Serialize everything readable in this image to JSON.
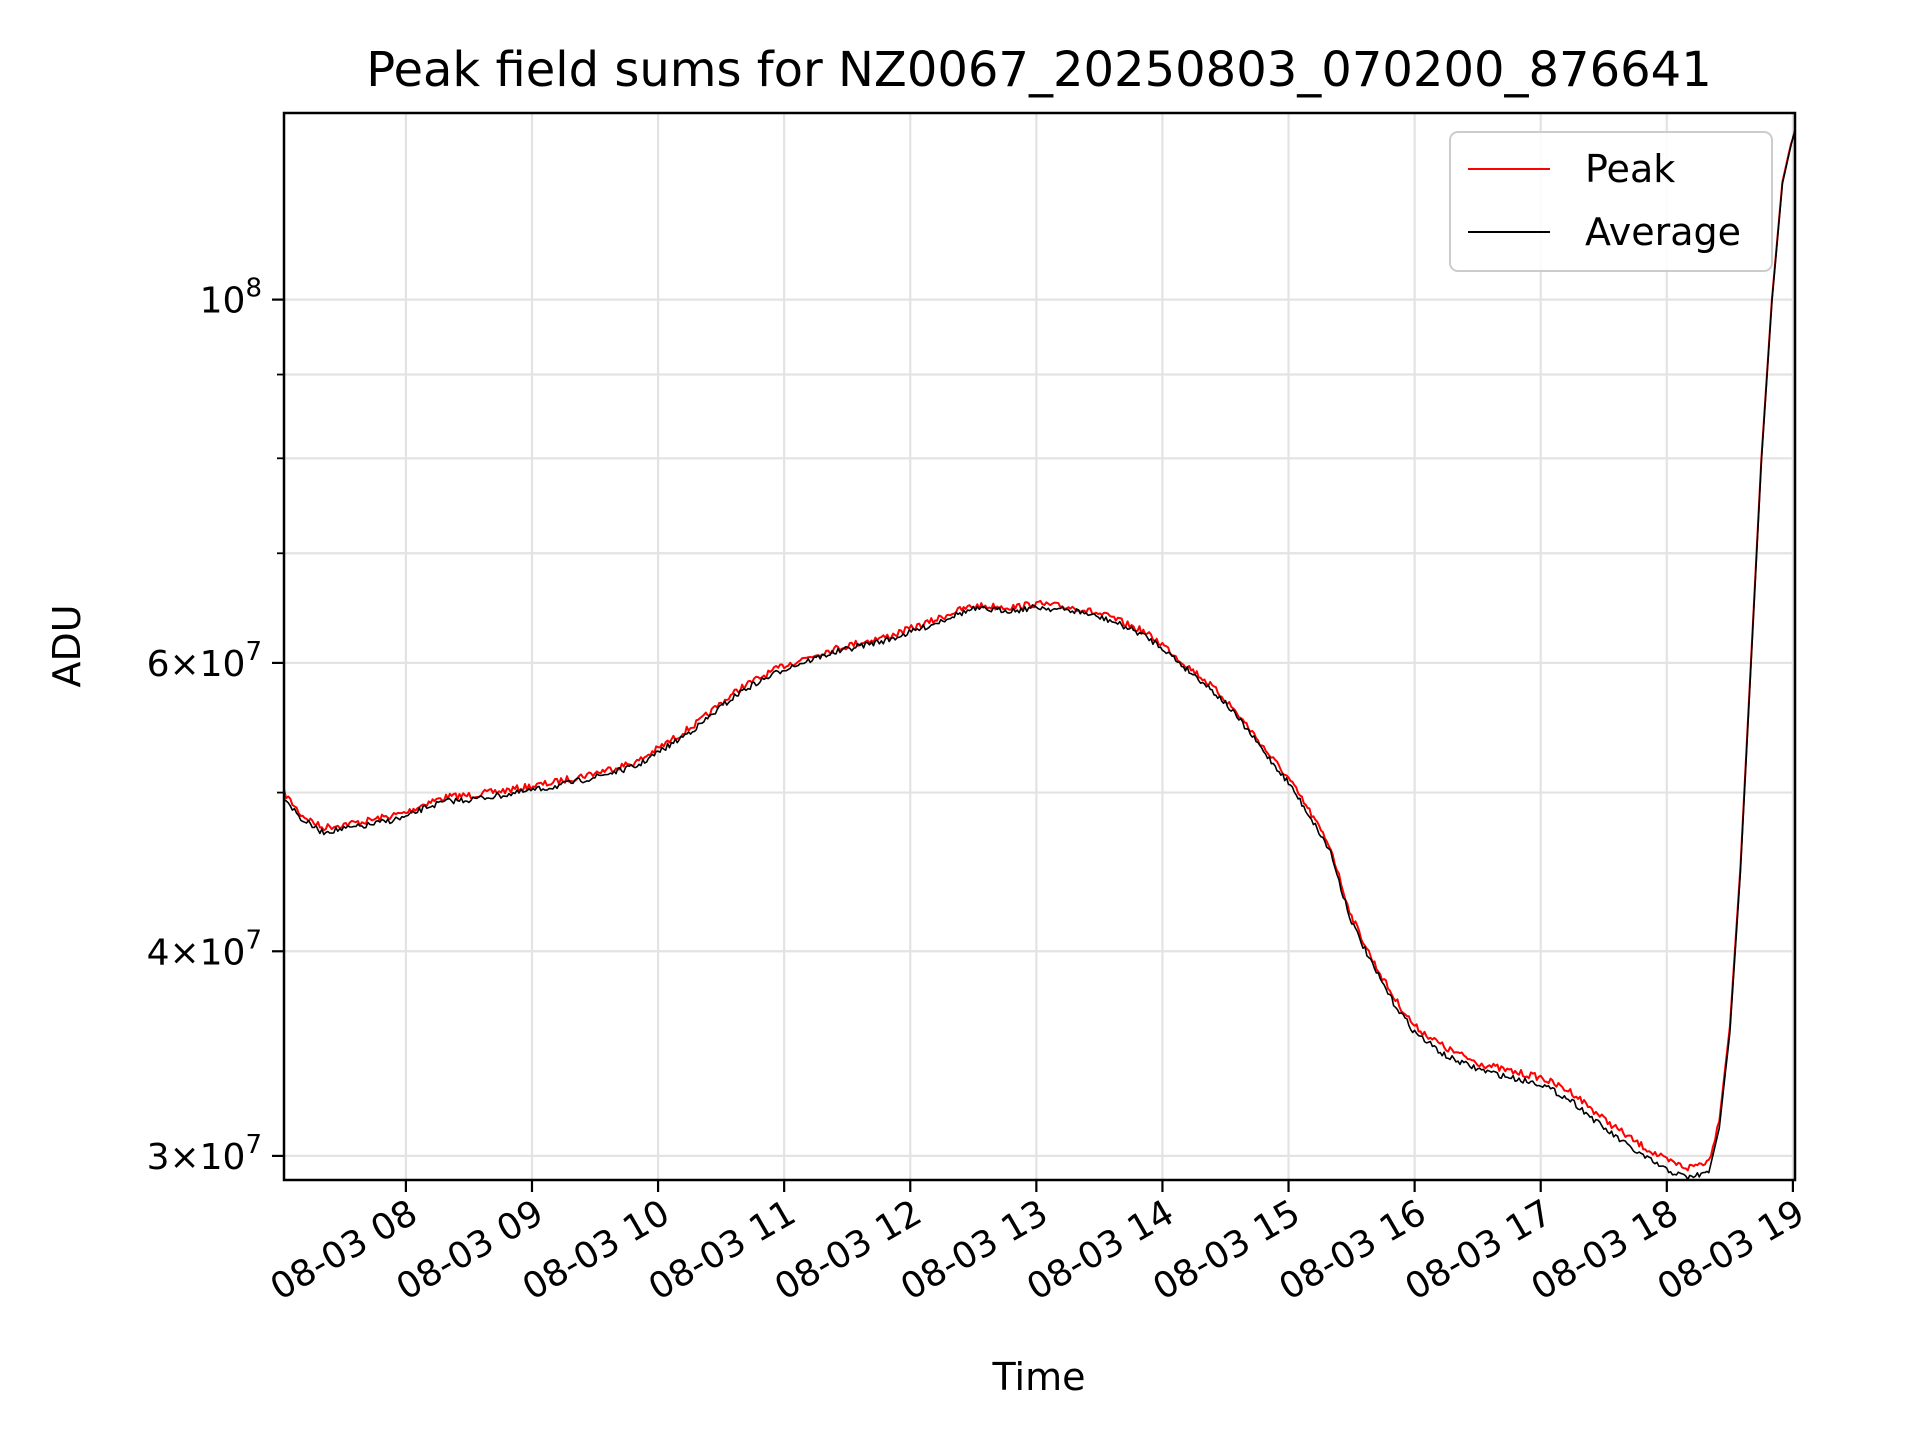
{
  "chart_data": {
    "type": "line",
    "title": "Peak field sums for NZ0067_20250803_070200_876641",
    "xlabel": "Time",
    "ylabel": "ADU",
    "yscale": "log",
    "ylim": [
      29000000,
      130000000
    ],
    "xlim": [
      "2025-08-03 07:02",
      "2025-08-03 19:01"
    ],
    "x_ticks": [
      {
        "t": "2025-08-03 08:00",
        "label": "08-03 08"
      },
      {
        "t": "2025-08-03 09:00",
        "label": "08-03 09"
      },
      {
        "t": "2025-08-03 10:00",
        "label": "08-03 10"
      },
      {
        "t": "2025-08-03 11:00",
        "label": "08-03 11"
      },
      {
        "t": "2025-08-03 12:00",
        "label": "08-03 12"
      },
      {
        "t": "2025-08-03 13:00",
        "label": "08-03 13"
      },
      {
        "t": "2025-08-03 14:00",
        "label": "08-03 14"
      },
      {
        "t": "2025-08-03 15:00",
        "label": "08-03 15"
      },
      {
        "t": "2025-08-03 16:00",
        "label": "08-03 16"
      },
      {
        "t": "2025-08-03 17:00",
        "label": "08-03 17"
      },
      {
        "t": "2025-08-03 18:00",
        "label": "08-03 18"
      },
      {
        "t": "2025-08-03 19:00",
        "label": "08-03 19"
      }
    ],
    "y_major_ticks": [
      {
        "value": 30000000,
        "base": "3",
        "exp": "7"
      },
      {
        "value": 40000000,
        "base": "4",
        "exp": "7"
      },
      {
        "value": 60000000,
        "base": "6",
        "exp": "7"
      },
      {
        "value": 100000000,
        "base": "",
        "exp": "8"
      }
    ],
    "y_minor_ticks": [
      50000000,
      70000000,
      80000000,
      90000000
    ],
    "grid": true,
    "legend": {
      "position": "top-right"
    },
    "series": [
      {
        "name": "Peak",
        "color": "#ff0000",
        "x": [
          "2025-08-03 07:02",
          "2025-08-03 07:10",
          "2025-08-03 07:20",
          "2025-08-03 07:40",
          "2025-08-03 08:00",
          "2025-08-03 08:10",
          "2025-08-03 08:20",
          "2025-08-03 08:30",
          "2025-08-03 08:50",
          "2025-08-03 09:10",
          "2025-08-03 09:30",
          "2025-08-03 09:40",
          "2025-08-03 09:50",
          "2025-08-03 10:00",
          "2025-08-03 10:10",
          "2025-08-03 10:20",
          "2025-08-03 10:30",
          "2025-08-03 10:40",
          "2025-08-03 11:00",
          "2025-08-03 11:20",
          "2025-08-03 11:35",
          "2025-08-03 11:50",
          "2025-08-03 12:10",
          "2025-08-03 12:20",
          "2025-08-03 12:30",
          "2025-08-03 12:50",
          "2025-08-03 13:00",
          "2025-08-03 13:20",
          "2025-08-03 13:35",
          "2025-08-03 13:50",
          "2025-08-03 14:00",
          "2025-08-03 14:10",
          "2025-08-03 14:20",
          "2025-08-03 14:30",
          "2025-08-03 14:40",
          "2025-08-03 14:50",
          "2025-08-03 15:00",
          "2025-08-03 15:10",
          "2025-08-03 15:20",
          "2025-08-03 15:25",
          "2025-08-03 15:30",
          "2025-08-03 15:40",
          "2025-08-03 15:50",
          "2025-08-03 16:00",
          "2025-08-03 16:15",
          "2025-08-03 16:30",
          "2025-08-03 16:45",
          "2025-08-03 17:00",
          "2025-08-03 17:15",
          "2025-08-03 17:30",
          "2025-08-03 17:45",
          "2025-08-03 18:00",
          "2025-08-03 18:10",
          "2025-08-03 18:20",
          "2025-08-03 18:25",
          "2025-08-03 18:30",
          "2025-08-03 18:35",
          "2025-08-03 18:40",
          "2025-08-03 18:45",
          "2025-08-03 18:50",
          "2025-08-03 18:55",
          "2025-08-03 19:00",
          "2025-08-03 19:01"
        ],
        "y": [
          50000000,
          48500000,
          47600000,
          48000000,
          48600000,
          49300000,
          49700000,
          49800000,
          50200000,
          50700000,
          51400000,
          51800000,
          52200000,
          53200000,
          54200000,
          55300000,
          56700000,
          58000000,
          59800000,
          61000000,
          61700000,
          62300000,
          63600000,
          64400000,
          65000000,
          64900000,
          65200000,
          64800000,
          64000000,
          62800000,
          61600000,
          60000000,
          58600000,
          57000000,
          55000000,
          52900000,
          51000000,
          48700000,
          46300000,
          44000000,
          42000000,
          39500000,
          37500000,
          36000000,
          34900000,
          34200000,
          33800000,
          33500000,
          32800000,
          31600000,
          30600000,
          29800000,
          29500000,
          29800000,
          31500000,
          36000000,
          45000000,
          60000000,
          80000000,
          100000000,
          118000000,
          126000000,
          127000000
        ]
      },
      {
        "name": "Average",
        "color": "#000000",
        "x": [
          "2025-08-03 07:02",
          "2025-08-03 07:10",
          "2025-08-03 07:20",
          "2025-08-03 07:40",
          "2025-08-03 08:00",
          "2025-08-03 08:10",
          "2025-08-03 08:20",
          "2025-08-03 08:30",
          "2025-08-03 08:50",
          "2025-08-03 09:10",
          "2025-08-03 09:30",
          "2025-08-03 09:40",
          "2025-08-03 09:50",
          "2025-08-03 10:00",
          "2025-08-03 10:10",
          "2025-08-03 10:20",
          "2025-08-03 10:30",
          "2025-08-03 10:40",
          "2025-08-03 11:00",
          "2025-08-03 11:20",
          "2025-08-03 11:35",
          "2025-08-03 11:50",
          "2025-08-03 12:10",
          "2025-08-03 12:20",
          "2025-08-03 12:30",
          "2025-08-03 12:50",
          "2025-08-03 13:00",
          "2025-08-03 13:20",
          "2025-08-03 13:35",
          "2025-08-03 13:50",
          "2025-08-03 14:00",
          "2025-08-03 14:10",
          "2025-08-03 14:20",
          "2025-08-03 14:30",
          "2025-08-03 14:40",
          "2025-08-03 14:50",
          "2025-08-03 15:00",
          "2025-08-03 15:10",
          "2025-08-03 15:20",
          "2025-08-03 15:25",
          "2025-08-03 15:30",
          "2025-08-03 15:40",
          "2025-08-03 15:50",
          "2025-08-03 16:00",
          "2025-08-03 16:15",
          "2025-08-03 16:30",
          "2025-08-03 16:45",
          "2025-08-03 17:00",
          "2025-08-03 17:15",
          "2025-08-03 17:30",
          "2025-08-03 17:45",
          "2025-08-03 18:00",
          "2025-08-03 18:10",
          "2025-08-03 18:20",
          "2025-08-03 18:25",
          "2025-08-03 18:30",
          "2025-08-03 18:35",
          "2025-08-03 18:40",
          "2025-08-03 18:45",
          "2025-08-03 18:50",
          "2025-08-03 18:55",
          "2025-08-03 19:00",
          "2025-08-03 19:01"
        ],
        "y": [
          49700000,
          48200000,
          47300000,
          47700000,
          48300000,
          49000000,
          49400000,
          49500000,
          49900000,
          50400000,
          51100000,
          51500000,
          51900000,
          52900000,
          53900000,
          55000000,
          56400000,
          57700000,
          59500000,
          60700000,
          61400000,
          62000000,
          63300000,
          64100000,
          64700000,
          64600000,
          64900000,
          64500000,
          63700000,
          62500000,
          61300000,
          59700000,
          58300000,
          56700000,
          54700000,
          52600000,
          50700000,
          48400000,
          46000000,
          43700000,
          41700000,
          39200000,
          37200000,
          35700000,
          34500000,
          33900000,
          33500000,
          33200000,
          32400000,
          31200000,
          30200000,
          29400000,
          29100000,
          29300000,
          31200000,
          35700000,
          44700000,
          59700000,
          79700000,
          99700000,
          117700000,
          125700000,
          126700000
        ]
      }
    ]
  }
}
